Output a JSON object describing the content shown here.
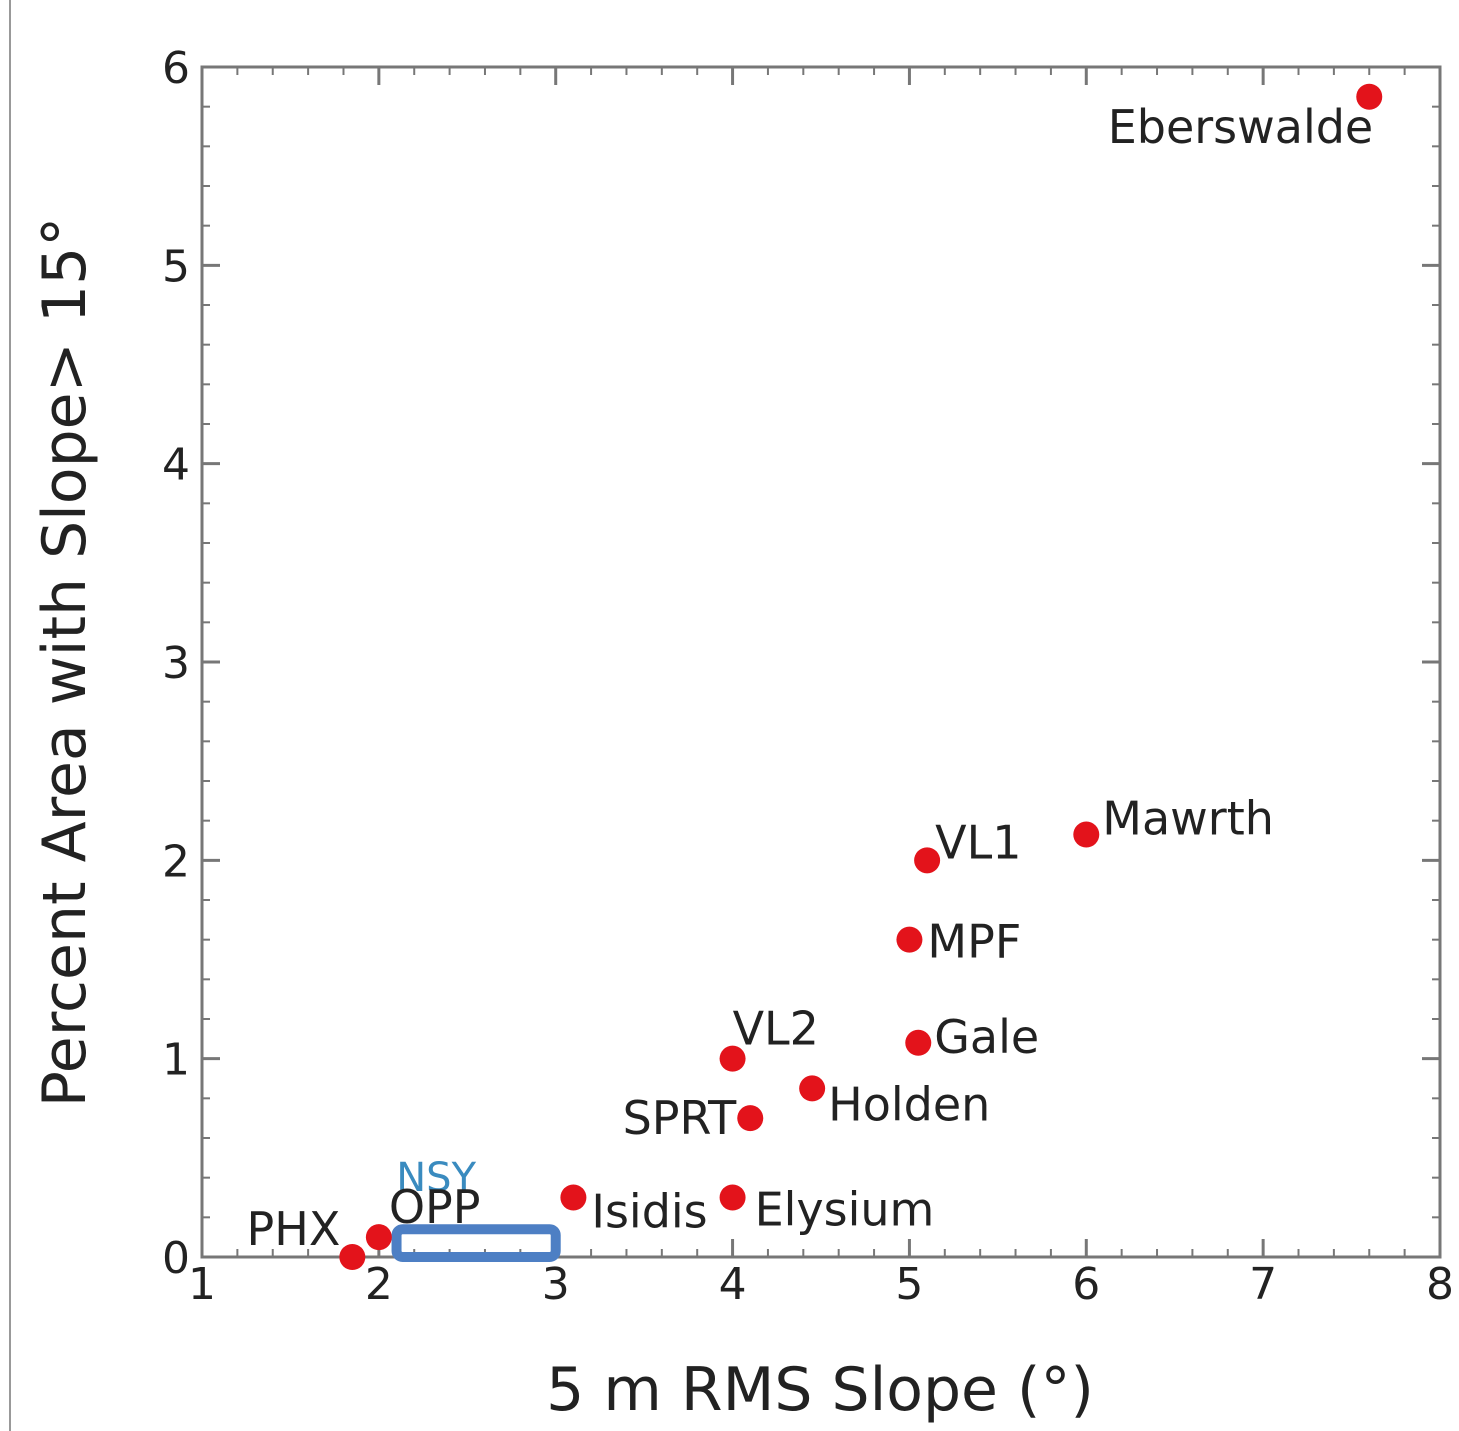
{
  "chart_data": {
    "type": "scatter",
    "xlabel": "5 m RMS Slope (°)",
    "ylabel": "Percent Area with Slope> 15°",
    "xlim": [
      1,
      8
    ],
    "ylim": [
      0,
      6
    ],
    "xticks": [
      "1",
      "2",
      "3",
      "4",
      "5",
      "6",
      "7",
      "8"
    ],
    "yticks": [
      "0",
      "1",
      "2",
      "3",
      "4",
      "5",
      "6"
    ],
    "grid": false,
    "point_color": "#e3131b",
    "points": [
      {
        "label": "PHX",
        "x": 1.85,
        "y": 0.0
      },
      {
        "label": "OPP",
        "x": 2.0,
        "y": 0.1
      },
      {
        "label": "Isidis",
        "x": 3.1,
        "y": 0.3
      },
      {
        "label": "Elysium",
        "x": 4.0,
        "y": 0.3
      },
      {
        "label": "SPRT",
        "x": 4.1,
        "y": 0.7
      },
      {
        "label": "Holden",
        "x": 4.45,
        "y": 0.85
      },
      {
        "label": "VL2",
        "x": 4.0,
        "y": 1.0
      },
      {
        "label": "Gale",
        "x": 5.05,
        "y": 1.08
      },
      {
        "label": "MPF",
        "x": 5.0,
        "y": 1.6
      },
      {
        "label": "VL1",
        "x": 5.1,
        "y": 2.0
      },
      {
        "label": "Mawrth",
        "x": 6.0,
        "y": 2.13
      },
      {
        "label": "Eberswalde",
        "x": 7.6,
        "y": 5.85
      }
    ],
    "region": {
      "label": "NSY",
      "x_range": [
        2.1,
        3.0
      ],
      "y_range": [
        0.0,
        0.12
      ],
      "color": "#4d7fc4",
      "label_color": "#3a8bbf"
    }
  }
}
